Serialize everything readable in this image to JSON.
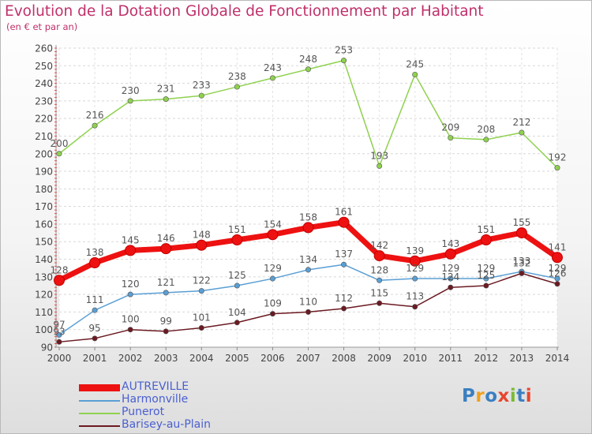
{
  "title": "Evolution de la Dotation Globale de Fonctionnement par Habitant",
  "subtitle": "(en € et par an)",
  "logo": {
    "letters": [
      "P",
      "r",
      "o",
      "x",
      "i",
      "t",
      "i"
    ],
    "colors": [
      "#3a7fc2",
      "#f0a01e",
      "#3a7fc2",
      "#e8452c",
      "#7cba36",
      "#3a7fc2",
      "#e8452c"
    ]
  },
  "chart_data": {
    "type": "line",
    "categories": [
      "2000",
      "2001",
      "2002",
      "2003",
      "2004",
      "2005",
      "2006",
      "2007",
      "2008",
      "2009",
      "2010",
      "2011",
      "2012",
      "2013",
      "2014"
    ],
    "ylim": [
      90,
      260
    ],
    "yticks": [
      "90",
      "100",
      "110",
      "120",
      "130",
      "140",
      "150",
      "160",
      "170",
      "180",
      "190",
      "200",
      "210",
      "220",
      "230",
      "240",
      "250",
      "260"
    ],
    "grid": true,
    "legend_placement": "bottom-left",
    "series": [
      {
        "name": "Punerot",
        "color": "#8fd14f",
        "values": [
          200,
          216,
          230,
          231,
          233,
          238,
          243,
          248,
          253,
          193,
          245,
          209,
          208,
          212,
          192
        ],
        "labels": [
          "200",
          "216",
          "230",
          "231",
          "233",
          "238",
          "243",
          "248",
          "253",
          "193",
          "245",
          "209",
          "208",
          "212",
          "192"
        ]
      },
      {
        "name": "Harmonville",
        "color": "#5a9fd4",
        "values": [
          97,
          111,
          120,
          121,
          122,
          125,
          129,
          134,
          137,
          128,
          129,
          129,
          129,
          133,
          129
        ],
        "labels": [
          "97",
          "111",
          "120",
          "121",
          "122",
          "125",
          "129",
          "134",
          "137",
          "128",
          "129",
          "129",
          "129",
          "133",
          "129"
        ]
      },
      {
        "name": "Barisey-au-Plain",
        "color": "#6b1a22",
        "values": [
          93,
          95,
          100,
          99,
          101,
          104,
          109,
          110,
          112,
          115,
          113,
          124,
          125,
          132,
          126
        ],
        "labels": [
          "93",
          "95",
          "100",
          "99",
          "101",
          "104",
          "109",
          "110",
          "112",
          "115",
          "113",
          "124",
          "125",
          "132",
          "126"
        ]
      },
      {
        "name": "AUTREVILLE",
        "color": "#ee1111",
        "values": [
          128,
          138,
          145,
          146,
          148,
          151,
          154,
          158,
          161,
          142,
          139,
          143,
          151,
          155,
          141
        ],
        "labels": [
          "128",
          "138",
          "145",
          "146",
          "148",
          "151",
          "154",
          "158",
          "161",
          "142",
          "139",
          "143",
          "151",
          "155",
          "141"
        ]
      }
    ],
    "legend": [
      "AUTREVILLE",
      "Harmonville",
      "Punerot",
      "Barisey-au-Plain"
    ]
  }
}
